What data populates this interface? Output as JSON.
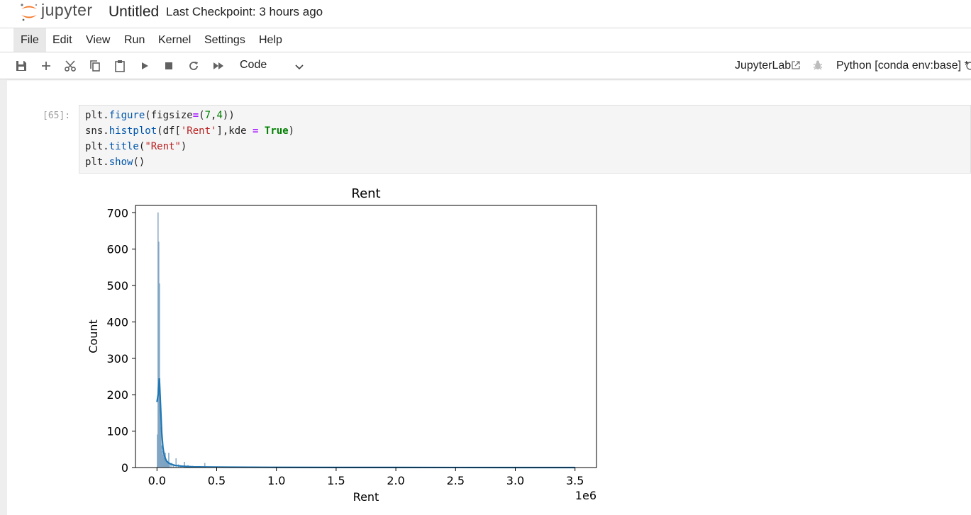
{
  "header": {
    "brand": "jupyter",
    "notebook_title": "Untitled",
    "checkpoint": "Last Checkpoint: 3 hours ago"
  },
  "menu": {
    "items": [
      {
        "label": "File"
      },
      {
        "label": "Edit"
      },
      {
        "label": "View"
      },
      {
        "label": "Run"
      },
      {
        "label": "Kernel"
      },
      {
        "label": "Settings"
      },
      {
        "label": "Help"
      }
    ]
  },
  "toolbar": {
    "cell_type": "Code",
    "jupyterlab_link": "JupyterLab",
    "kernel": "Python [conda env:base] *"
  },
  "cell": {
    "prompt": "[65]:",
    "code": {
      "l1": {
        "a": "plt.",
        "b": "figure",
        "c": "(figsize",
        "d": "=",
        "e": "(",
        "f": "7",
        "g": ",",
        "h": "4",
        "i": "))"
      },
      "l2": {
        "a": "sns.",
        "b": "histplot",
        "c": "(df[",
        "d": "'Rent'",
        "e": "],kde ",
        "f": "=",
        "g": " ",
        "h": "True",
        "i": ")"
      },
      "l3": {
        "a": "plt.",
        "b": "title",
        "c": "(",
        "d": "\"Rent\"",
        "e": ")"
      },
      "l4": {
        "a": "plt.",
        "b": "show",
        "c": "()"
      }
    }
  },
  "colors": {
    "kde_line": "#1f77b4",
    "hist_bar": "#7ea6c7"
  },
  "chart_data": {
    "type": "bar",
    "title": "Rent",
    "xlabel": "Rent",
    "ylabel": "Count",
    "x_offset_label": "1e6",
    "xlim": [
      -180000,
      3680000
    ],
    "ylim": [
      0,
      720
    ],
    "x_ticks": [
      0,
      0.5,
      1.0,
      1.5,
      2.0,
      2.5,
      3.0,
      3.5
    ],
    "x_tick_labels": [
      "0.0",
      "0.5",
      "1.0",
      "1.5",
      "2.0",
      "2.5",
      "3.0",
      "3.5"
    ],
    "y_ticks": [
      0,
      100,
      200,
      300,
      400,
      500,
      600,
      700
    ],
    "y_tick_labels": [
      "0",
      "100",
      "200",
      "300",
      "400",
      "500",
      "600",
      "700"
    ],
    "grid": false,
    "histogram": {
      "bin_centers": [
        3000,
        9000,
        15000,
        21000,
        27000,
        33000,
        39000,
        45000,
        51000,
        57000,
        63000,
        69000,
        75000,
        81000,
        87000,
        93000,
        99000,
        110000,
        125000,
        140000,
        160000,
        180000,
        200000,
        230000,
        260000,
        300000,
        350000,
        400000
      ],
      "counts": [
        90,
        700,
        620,
        505,
        160,
        110,
        60,
        45,
        35,
        30,
        25,
        40,
        20,
        20,
        15,
        12,
        40,
        10,
        12,
        8,
        25,
        8,
        6,
        15,
        6,
        4,
        3,
        12
      ]
    },
    "kde": {
      "x": [
        0,
        10000,
        20000,
        30000,
        40000,
        50000,
        60000,
        70000,
        80000,
        100000,
        120000,
        150000,
        200000,
        300000,
        400000,
        600000,
        1000000,
        1500000,
        2000000,
        2500000,
        3000000,
        3500000
      ],
      "y": [
        180,
        200,
        245,
        170,
        95,
        55,
        35,
        25,
        18,
        12,
        9,
        6,
        4,
        2,
        1.5,
        1,
        0.5,
        0.3,
        0.2,
        0.1,
        0.05,
        0
      ]
    }
  }
}
